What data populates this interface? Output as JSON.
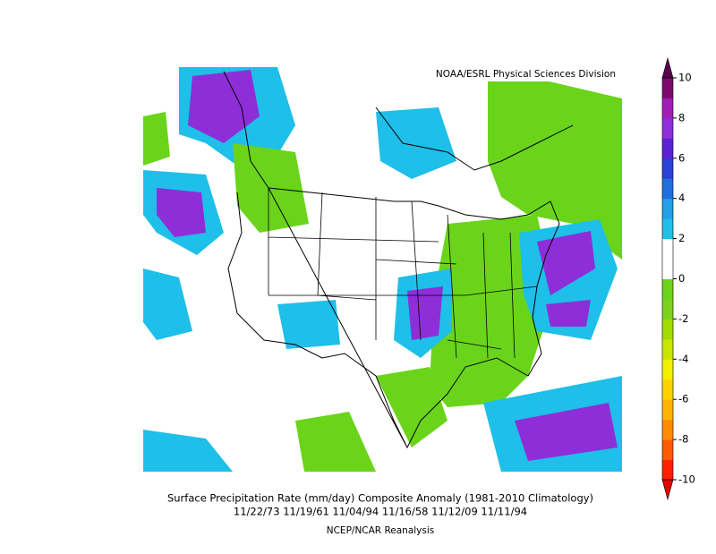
{
  "attribution": "NOAA/ESRL Physical Sciences Division",
  "caption": {
    "line1": "Surface Precipitation Rate (mm/day) Composite Anomaly (1981-2010 Climatology)",
    "line2": "11/22/73 11/19/61 11/04/94 11/16/58 11/12/09 11/11/94",
    "line3": "NCEP/NCAR Reanalysis"
  },
  "colorbar": {
    "lim": [
      -10,
      10
    ],
    "ticks": [
      10,
      8,
      6,
      4,
      2,
      0,
      -2,
      -4,
      -6,
      -8,
      -10
    ],
    "colors": [
      "#ff2000",
      "#ff5a00",
      "#ff8c00",
      "#ffb400",
      "#ffd200",
      "#f0f000",
      "#c8e600",
      "#a0dc00",
      "#7dd21e",
      "#6ad41a",
      "#ffffff",
      "#ffffff",
      "#1ebfe8",
      "#20a0e6",
      "#1e6ee0",
      "#2a40d8",
      "#5a22d4",
      "#8e2ed8",
      "#a01eb4",
      "#7a0a6e"
    ],
    "over_color": "#5a0050",
    "under_color": "#e60000"
  }
}
